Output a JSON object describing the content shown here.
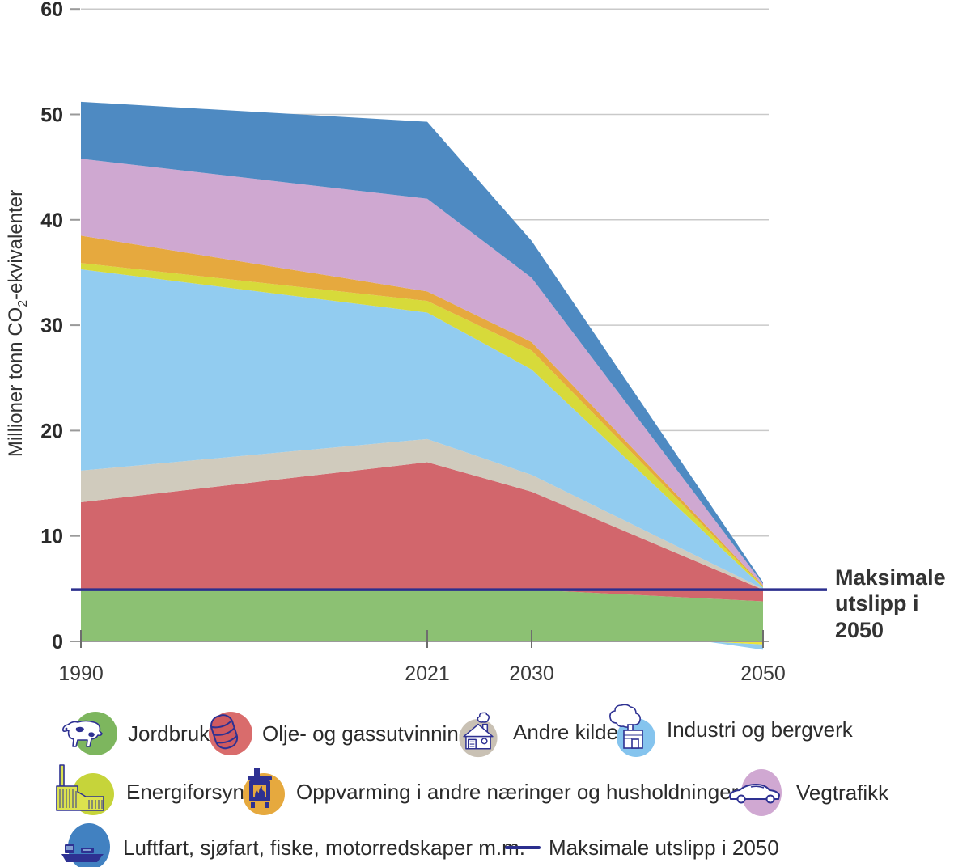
{
  "y_axis": {
    "title_prefix": "Millioner tonn CO",
    "title_sub": "2",
    "title_suffix": "-ekvivalenter"
  },
  "annotation": {
    "line1": "Maksimale",
    "line2": "utslipp i 2050"
  },
  "chart_data": {
    "type": "area",
    "title": "",
    "ylabel": "Millioner tonn CO2-ekvivalenter",
    "xlabel": "",
    "x": [
      1990,
      2021,
      2030,
      2050
    ],
    "x_tick_labels": [
      "1990",
      "2021",
      "2030",
      "2050"
    ],
    "y_ticks": [
      0,
      10,
      20,
      30,
      40,
      50,
      60
    ],
    "ylim": [
      0,
      60
    ],
    "grid": "horizontal",
    "legend_position": "bottom",
    "series": [
      {
        "id": "jordbruk",
        "name": "Jordbruk",
        "color": "#8cc173",
        "values": [
          4.9,
          4.9,
          4.9,
          3.8
        ]
      },
      {
        "id": "olje-og-gass",
        "name": "Olje- og gassutvinning",
        "color": "#d2666c",
        "values": [
          8.3,
          12.1,
          9.3,
          1.1
        ]
      },
      {
        "id": "andre-kilder",
        "name": "Andre kilder",
        "color": "#d0cbbd",
        "values": [
          3.0,
          2.2,
          1.6,
          0.1
        ]
      },
      {
        "id": "industri",
        "name": "Industri og bergverk",
        "color": "#92ccf0",
        "values": [
          19.1,
          12.0,
          10.0,
          0.1
        ]
      },
      {
        "id": "energiforsyning",
        "name": "Energiforsyning",
        "color": "#d7da3a",
        "values": [
          0.6,
          1.1,
          1.8,
          0.1
        ]
      },
      {
        "id": "oppvarming",
        "name": "Oppvarming i andre næringer og husholdninger",
        "color": "#e6a93e",
        "values": [
          2.6,
          0.9,
          0.8,
          0.1
        ]
      },
      {
        "id": "vegtrafikk",
        "name": "Vegtrafikk",
        "color": "#cfa8d1",
        "values": [
          7.3,
          8.8,
          6.1,
          0.15
        ]
      },
      {
        "id": "luftfart",
        "name": "Luftfart, sjøfart, fiske, motorredskaper m.m.",
        "color": "#4e8ac2",
        "values": [
          5.4,
          7.3,
          3.5,
          0.15
        ]
      }
    ],
    "negative_series": [
      {
        "id": "energiforsyning-negativ",
        "name": "Energiforsyning",
        "color": "#ece43a",
        "start_year": 2045,
        "value_2050": -0.3
      },
      {
        "id": "industri-negativ",
        "name": "Industri og bergverk",
        "color": "#92ccf0",
        "start_year": 2045,
        "value_2050": -0.5
      }
    ],
    "max_line": {
      "label": "Maksimale utslipp i 2050",
      "value": 4.9,
      "color": "#2b2f8e"
    }
  },
  "legend": {
    "rows": [
      [
        {
          "icon": "cow-icon",
          "label": "Jordbruk"
        },
        {
          "icon": "oil-barrel-icon",
          "label": "Olje- og gassutvinning"
        },
        {
          "icon": "house-icon",
          "label": "Andre kilder"
        },
        {
          "icon": "factory-icon",
          "label": "Industri og bergverk"
        }
      ],
      [
        {
          "icon": "power-plant-icon",
          "label": "Energiforsyning"
        },
        {
          "icon": "stove-icon",
          "label": "Oppvarming i andre næringer og husholdninger"
        },
        {
          "icon": "car-icon",
          "label": "Vegtrafikk"
        }
      ],
      [
        {
          "icon": "ship-icon",
          "label": "Luftfart, sjøfart, fiske, motorredskaper m.m."
        },
        {
          "icon": "max-line-swatch",
          "label": "Maksimale utslipp i 2050"
        }
      ]
    ],
    "colors": {
      "jordbruk": "#7db65e",
      "olje": "#d96c6c",
      "andre": "#c9c1b4",
      "industri": "#85c4ee",
      "energi": "#c6d43a",
      "oppvarming": "#e6a93e",
      "vegtrafikk": "#d0a8d2",
      "luftfart": "#4181c1",
      "maks_line": "#2b2f8e"
    }
  }
}
